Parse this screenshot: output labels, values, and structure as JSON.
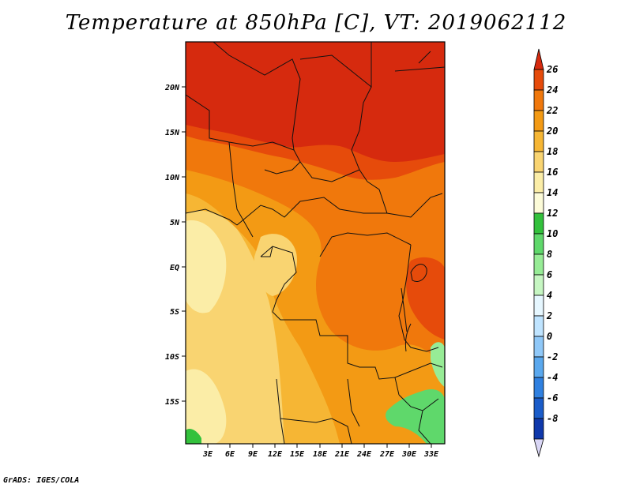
{
  "title": "Temperature at 850hPa [C], VT: 2019062112",
  "credit": "GrADS: IGES/COLA",
  "map": {
    "lat_labels": [
      "20N",
      "15N",
      "10N",
      "5N",
      "EQ",
      "5S",
      "10S",
      "15S"
    ],
    "lon_labels": [
      "3E",
      "6E",
      "9E",
      "12E",
      "15E",
      "18E",
      "21E",
      "24E",
      "27E",
      "30E",
      "33E"
    ]
  },
  "colorbar": {
    "labels": [
      "26",
      "24",
      "22",
      "20",
      "18",
      "16",
      "14",
      "12",
      "10",
      "8",
      "6",
      "4",
      "2",
      "0",
      "-2",
      "-4",
      "-6",
      "-8"
    ],
    "colors": [
      "#d62a0e",
      "#e64b0b",
      "#f0780c",
      "#f39a14",
      "#f6b634",
      "#f9d471",
      "#fbeda7",
      "#fcfbd8",
      "#33c13c",
      "#5fd86b",
      "#97ec96",
      "#c6f6c2",
      "#e6f7ff",
      "#bfe4ff",
      "#8fc8f8",
      "#5aa8ee",
      "#2f80e0",
      "#1a5cc9",
      "#0f38ab",
      "#05148a"
    ]
  }
}
